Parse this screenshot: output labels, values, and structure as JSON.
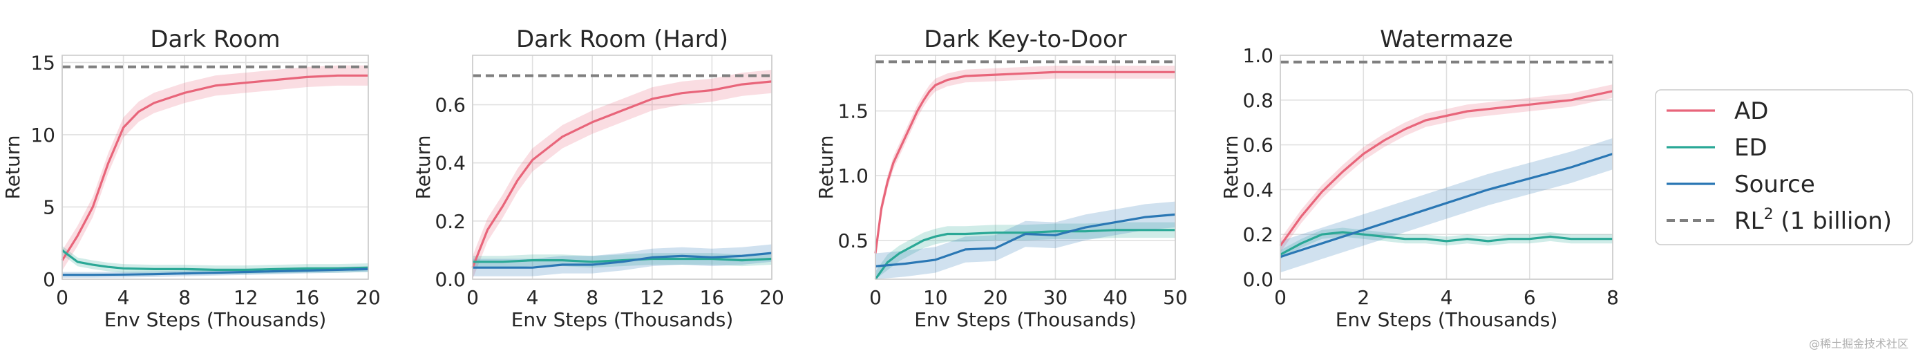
{
  "colors": {
    "AD": "#e8657a",
    "ED": "#2aa896",
    "Source": "#2a77b4",
    "RL2": "#7f7f7f"
  },
  "legend": [
    {
      "key": "AD",
      "label": "AD",
      "style": "solid"
    },
    {
      "key": "ED",
      "label": "ED",
      "style": "solid"
    },
    {
      "key": "Source",
      "label": "Source",
      "style": "solid"
    },
    {
      "key": "RL2",
      "label_main": "RL",
      "label_sup": "2",
      "label_rest": " (1 billion)",
      "style": "dashed"
    }
  ],
  "watermark": "@稀土掘金技术社区",
  "chart_data": [
    {
      "type": "line",
      "title": "Dark Room",
      "xlabel": "Env Steps (Thousands)",
      "ylabel": "Return",
      "xlim": [
        0,
        20
      ],
      "ylim": [
        0,
        15.5
      ],
      "xticks": [
        0,
        4,
        8,
        12,
        16,
        20
      ],
      "yticks": [
        0,
        5,
        10,
        15
      ],
      "grid": true,
      "rl2": 14.7,
      "series": [
        {
          "key": "AD",
          "band": 0.7,
          "x": [
            0,
            1,
            2,
            3,
            4,
            5,
            6,
            8,
            10,
            12,
            14,
            16,
            18,
            20
          ],
          "y": [
            1.3,
            3.0,
            5.0,
            8.0,
            10.5,
            11.6,
            12.2,
            12.9,
            13.4,
            13.6,
            13.8,
            14.0,
            14.1,
            14.1
          ]
        },
        {
          "key": "ED",
          "band": 0.3,
          "x": [
            0,
            1,
            2,
            3,
            4,
            6,
            8,
            10,
            12,
            14,
            16,
            18,
            20
          ],
          "y": [
            2.0,
            1.2,
            1.0,
            0.85,
            0.75,
            0.7,
            0.7,
            0.65,
            0.65,
            0.7,
            0.75,
            0.75,
            0.8
          ]
        },
        {
          "key": "Source",
          "band": 0.2,
          "x": [
            0,
            2,
            4,
            6,
            8,
            10,
            12,
            14,
            16,
            18,
            20
          ],
          "y": [
            0.3,
            0.3,
            0.32,
            0.35,
            0.4,
            0.45,
            0.5,
            0.55,
            0.6,
            0.65,
            0.7
          ]
        }
      ]
    },
    {
      "type": "line",
      "title": "Dark Room (Hard)",
      "xlabel": "Env Steps (Thousands)",
      "ylabel": "Return",
      "xlim": [
        0,
        20
      ],
      "ylim": [
        0,
        0.77
      ],
      "xticks": [
        0,
        4,
        8,
        12,
        16,
        20
      ],
      "yticks": [
        0.0,
        0.2,
        0.4,
        0.6
      ],
      "ytick_labels": [
        "0.0",
        "0.2",
        "0.4",
        "0.6"
      ],
      "grid": true,
      "rl2": 0.7,
      "series": [
        {
          "key": "AD",
          "band": 0.04,
          "x": [
            0,
            1,
            2,
            3,
            4,
            5,
            6,
            8,
            10,
            12,
            14,
            16,
            18,
            20
          ],
          "y": [
            0.04,
            0.17,
            0.25,
            0.34,
            0.41,
            0.45,
            0.49,
            0.54,
            0.58,
            0.62,
            0.64,
            0.65,
            0.67,
            0.68
          ]
        },
        {
          "key": "ED",
          "band": 0.02,
          "x": [
            0,
            2,
            4,
            6,
            8,
            10,
            12,
            14,
            16,
            18,
            20
          ],
          "y": [
            0.06,
            0.06,
            0.065,
            0.065,
            0.06,
            0.065,
            0.07,
            0.07,
            0.07,
            0.065,
            0.07
          ]
        },
        {
          "key": "Source",
          "band": 0.03,
          "x": [
            0,
            2,
            4,
            6,
            8,
            10,
            12,
            14,
            16,
            18,
            20
          ],
          "y": [
            0.04,
            0.04,
            0.04,
            0.05,
            0.05,
            0.06,
            0.075,
            0.08,
            0.075,
            0.08,
            0.09
          ]
        }
      ]
    },
    {
      "type": "line",
      "title": "Dark Key-to-Door",
      "xlabel": "Env Steps (Thousands)",
      "ylabel": "Return",
      "xlim": [
        0,
        50
      ],
      "ylim": [
        0.2,
        1.93
      ],
      "xticks": [
        0,
        10,
        20,
        30,
        40,
        50
      ],
      "yticks": [
        0.5,
        1.0,
        1.5
      ],
      "ytick_labels": [
        "0.5",
        "1.0",
        "1.5"
      ],
      "grid": true,
      "rl2": 1.88,
      "series": [
        {
          "key": "AD",
          "band": 0.05,
          "x": [
            0,
            1,
            2,
            3,
            4,
            5,
            6,
            7,
            8,
            9,
            10,
            12,
            15,
            20,
            25,
            30,
            35,
            40,
            45,
            50
          ],
          "y": [
            0.4,
            0.75,
            0.95,
            1.1,
            1.2,
            1.3,
            1.4,
            1.5,
            1.58,
            1.65,
            1.7,
            1.74,
            1.77,
            1.78,
            1.79,
            1.8,
            1.8,
            1.8,
            1.8,
            1.8
          ]
        },
        {
          "key": "ED",
          "band": 0.06,
          "x": [
            0,
            2,
            4,
            6,
            8,
            10,
            12,
            15,
            20,
            25,
            30,
            35,
            40,
            45,
            50
          ],
          "y": [
            0.2,
            0.33,
            0.4,
            0.45,
            0.5,
            0.53,
            0.55,
            0.55,
            0.56,
            0.56,
            0.57,
            0.57,
            0.58,
            0.58,
            0.58
          ]
        },
        {
          "key": "Source",
          "band": 0.1,
          "x": [
            0,
            5,
            10,
            15,
            20,
            25,
            30,
            35,
            40,
            45,
            50
          ],
          "y": [
            0.3,
            0.32,
            0.35,
            0.43,
            0.44,
            0.55,
            0.54,
            0.6,
            0.64,
            0.68,
            0.7
          ]
        }
      ]
    },
    {
      "type": "line",
      "title": "Watermaze",
      "xlabel": "Env Steps (Thousands)",
      "ylabel": "Return",
      "xlim": [
        0,
        8
      ],
      "ylim": [
        0.0,
        1.0
      ],
      "xticks": [
        0,
        2,
        4,
        6,
        8
      ],
      "yticks": [
        0.0,
        0.2,
        0.4,
        0.6,
        0.8,
        1.0
      ],
      "ytick_labels": [
        "0.0",
        "0.2",
        "0.4",
        "0.6",
        "0.8",
        "1.0"
      ],
      "grid": true,
      "rl2": 0.97,
      "series": [
        {
          "key": "AD",
          "band": 0.03,
          "x": [
            0,
            0.5,
            1,
            1.5,
            2,
            2.5,
            3,
            3.5,
            4,
            4.5,
            5,
            5.5,
            6,
            6.5,
            7,
            7.5,
            8
          ],
          "y": [
            0.15,
            0.28,
            0.39,
            0.48,
            0.56,
            0.62,
            0.67,
            0.71,
            0.73,
            0.75,
            0.76,
            0.77,
            0.78,
            0.79,
            0.8,
            0.82,
            0.84
          ]
        },
        {
          "key": "ED",
          "band": 0.02,
          "x": [
            0,
            0.5,
            1,
            1.5,
            2,
            2.5,
            3,
            3.5,
            4,
            4.5,
            5,
            5.5,
            6,
            6.5,
            7,
            7.5,
            8
          ],
          "y": [
            0.11,
            0.16,
            0.2,
            0.21,
            0.2,
            0.19,
            0.18,
            0.18,
            0.17,
            0.18,
            0.17,
            0.18,
            0.18,
            0.19,
            0.18,
            0.18,
            0.18
          ]
        },
        {
          "key": "Source",
          "band": 0.07,
          "x": [
            0,
            1,
            2,
            3,
            4,
            5,
            6,
            7,
            8
          ],
          "y": [
            0.1,
            0.16,
            0.22,
            0.28,
            0.34,
            0.4,
            0.45,
            0.5,
            0.56
          ]
        }
      ]
    }
  ]
}
